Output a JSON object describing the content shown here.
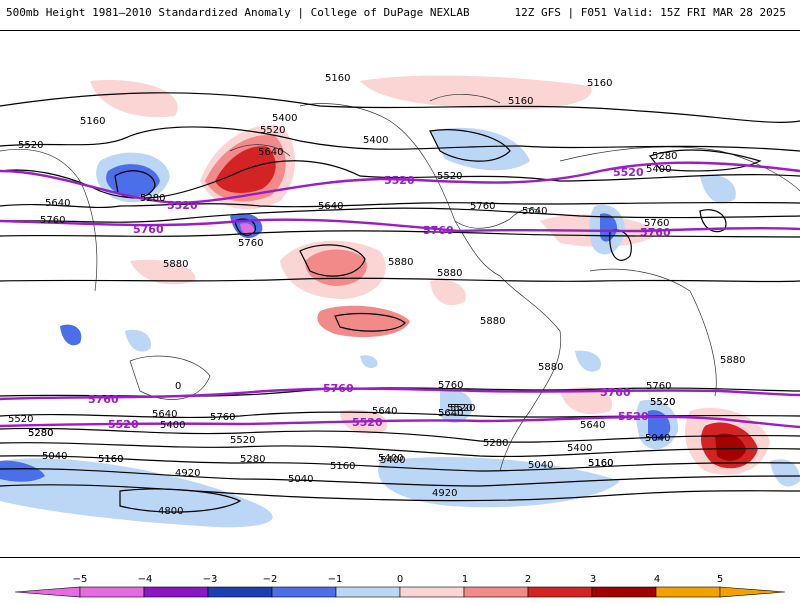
{
  "header": {
    "title": "500mb Height 1981–2010 Standardized Anomaly | College of DuPage NEXLAB",
    "run_info": "12Z GFS | F051 Valid: 15Z FRI MAR 28 2025"
  },
  "map": {
    "contour_labels": [
      {
        "id": "c1",
        "text": "5160"
      },
      {
        "id": "c2",
        "text": "5160"
      },
      {
        "id": "c3",
        "text": "5160"
      },
      {
        "id": "c4",
        "text": "5160"
      },
      {
        "id": "c5",
        "text": "5520"
      },
      {
        "id": "c6",
        "text": "5520"
      },
      {
        "id": "c7",
        "text": "5400"
      },
      {
        "id": "c8",
        "text": "5400"
      },
      {
        "id": "c9",
        "text": "5640"
      },
      {
        "id": "c10",
        "text": "5280"
      },
      {
        "id": "c11",
        "text": "5640"
      },
      {
        "id": "c12",
        "text": "5760"
      },
      {
        "id": "c13",
        "text": "5760"
      },
      {
        "id": "c14",
        "text": "5640"
      },
      {
        "id": "c15",
        "text": "5520"
      },
      {
        "id": "c16",
        "text": "5760"
      },
      {
        "id": "c17",
        "text": "5640"
      },
      {
        "id": "c18",
        "text": "5880"
      },
      {
        "id": "c19",
        "text": "5880"
      },
      {
        "id": "c20",
        "text": "5880"
      },
      {
        "id": "c21",
        "text": "5280"
      },
      {
        "id": "c22",
        "text": "5400"
      },
      {
        "id": "c23",
        "text": "5760"
      },
      {
        "id": "c24",
        "text": "5880"
      },
      {
        "id": "c25",
        "text": "5880"
      },
      {
        "id": "c26",
        "text": "5880"
      },
      {
        "id": "c27",
        "text": "5520"
      },
      {
        "id": "c28",
        "text": "5640"
      },
      {
        "id": "c29",
        "text": "5400"
      },
      {
        "id": "c30",
        "text": "5160"
      },
      {
        "id": "c31",
        "text": "5280"
      },
      {
        "id": "c32",
        "text": "5040"
      },
      {
        "id": "c33",
        "text": "5160"
      },
      {
        "id": "c34",
        "text": "5520"
      },
      {
        "id": "c35",
        "text": "5400"
      },
      {
        "id": "c36",
        "text": "5760"
      },
      {
        "id": "c37",
        "text": "5640"
      },
      {
        "id": "c38",
        "text": "5520"
      },
      {
        "id": "c39",
        "text": "5280"
      },
      {
        "id": "c40",
        "text": "4920"
      },
      {
        "id": "c41",
        "text": "5040"
      },
      {
        "id": "c42",
        "text": "5160"
      },
      {
        "id": "c43",
        "text": "4800"
      },
      {
        "id": "c44",
        "text": "5640"
      },
      {
        "id": "c45",
        "text": "5400"
      },
      {
        "id": "c46",
        "text": "5160"
      },
      {
        "id": "c47",
        "text": "5040"
      },
      {
        "id": "c48",
        "text": "5760"
      },
      {
        "id": "c49",
        "text": "5520"
      },
      {
        "id": "c50",
        "text": "5280"
      },
      {
        "id": "c51",
        "text": "5640"
      },
      {
        "id": "c52",
        "text": "5400"
      },
      {
        "id": "c53",
        "text": "5160"
      },
      {
        "id": "c54",
        "text": "5520"
      },
      {
        "id": "c55",
        "text": "5040"
      },
      {
        "id": "c56",
        "text": "4920"
      },
      {
        "id": "c57",
        "text": "5760"
      },
      {
        "id": "c58",
        "text": "5520"
      },
      {
        "id": "c59",
        "text": "5280"
      },
      {
        "id": "c60",
        "text": "0"
      }
    ],
    "purple_labels": [
      {
        "id": "p1",
        "text": "5520"
      },
      {
        "id": "p2",
        "text": "5760"
      },
      {
        "id": "p3",
        "text": "5520"
      },
      {
        "id": "p4",
        "text": "5760"
      },
      {
        "id": "p5",
        "text": "5520"
      },
      {
        "id": "p6",
        "text": "5760"
      },
      {
        "id": "p7",
        "text": "5760"
      },
      {
        "id": "p8",
        "text": "5520"
      },
      {
        "id": "p9",
        "text": "5760"
      },
      {
        "id": "p10",
        "text": "5520"
      },
      {
        "id": "p11",
        "text": "5760"
      },
      {
        "id": "p12",
        "text": "5520"
      }
    ]
  },
  "colorbar": {
    "ticks": [
      "−5",
      "−4",
      "−3",
      "−2",
      "−1",
      "0",
      "1",
      "2",
      "3",
      "4",
      "5"
    ],
    "colors": {
      "neg5": "#e46be0",
      "neg4": "#8a16c4",
      "neg3": "#1d3fb4",
      "neg2": "#4a6fe8",
      "neg1": "#bcd6f6",
      "zero": "#ffffff",
      "pos1": "#fbd4d4",
      "pos2": "#f28a8a",
      "pos3": "#d42323",
      "pos4": "#a30000",
      "pos5": "#f2a100"
    }
  }
}
